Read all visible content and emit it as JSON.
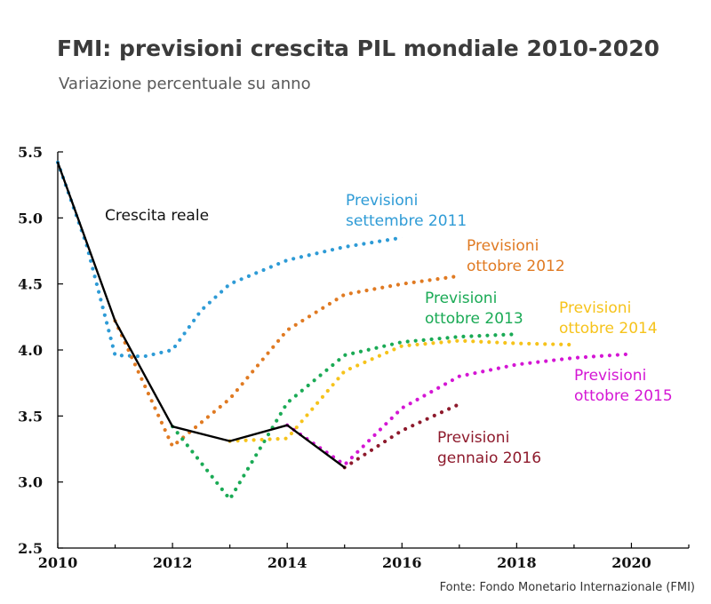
{
  "title": "FMI: previsioni crescita PIL mondiale 2010-2020",
  "subtitle": "Variazione percentuale su anno",
  "source": "Fonte: Fondo Monetario Internazionale (FMI)",
  "chart_data": {
    "type": "line",
    "xlim": [
      2010,
      2021
    ],
    "ylim": [
      2.5,
      5.5
    ],
    "x_ticks": [
      2010,
      2012,
      2014,
      2016,
      2018,
      2020
    ],
    "y_ticks": [
      "2.5",
      "3.0",
      "3.5",
      "4.0",
      "4.5",
      "5.0",
      "5.5"
    ],
    "grid": false,
    "series": [
      {
        "name": "Crescita reale",
        "color": "#000000",
        "style": "solid",
        "label_lines": [
          "Crescita reale"
        ],
        "points": [
          [
            2010,
            5.42
          ],
          [
            2011,
            4.22
          ],
          [
            2012,
            3.42
          ],
          [
            2013,
            3.31
          ],
          [
            2014,
            3.43
          ],
          [
            2015,
            3.11
          ]
        ]
      },
      {
        "name": "Previsioni settembre 2011",
        "color": "#2e9bd6",
        "style": "dotted",
        "label_lines": [
          "Previsioni",
          "settembre 2011"
        ],
        "points": [
          [
            2010,
            5.42
          ],
          [
            2010.5,
            4.8
          ],
          [
            2011,
            3.96
          ],
          [
            2011.5,
            3.95
          ],
          [
            2012,
            4.0
          ],
          [
            2012.5,
            4.3
          ],
          [
            2013,
            4.5
          ],
          [
            2014,
            4.68
          ],
          [
            2015,
            4.78
          ],
          [
            2016,
            4.85
          ]
        ]
      },
      {
        "name": "Previsioni ottobre 2012",
        "color": "#e07a22",
        "style": "dotted",
        "label_lines": [
          "Previsioni",
          "ottobre 2012"
        ],
        "points": [
          [
            2011,
            4.22
          ],
          [
            2012,
            3.27
          ],
          [
            2013,
            3.63
          ],
          [
            2014,
            4.15
          ],
          [
            2015,
            4.42
          ],
          [
            2016,
            4.5
          ],
          [
            2017,
            4.56
          ]
        ]
      },
      {
        "name": "Previsioni ottobre 2013",
        "color": "#1aaa55",
        "style": "dotted",
        "label_lines": [
          "Previsioni",
          "ottobre 2013"
        ],
        "points": [
          [
            2012,
            3.42
          ],
          [
            2013,
            2.87
          ],
          [
            2014,
            3.6
          ],
          [
            2015,
            3.96
          ],
          [
            2016,
            4.06
          ],
          [
            2017,
            4.1
          ],
          [
            2018,
            4.12
          ]
        ]
      },
      {
        "name": "Previsioni ottobre 2014",
        "color": "#f6c31b",
        "style": "dotted",
        "label_lines": [
          "Previsioni",
          "ottobre 2014"
        ],
        "points": [
          [
            2013,
            3.31
          ],
          [
            2014,
            3.33
          ],
          [
            2015,
            3.84
          ],
          [
            2016,
            4.03
          ],
          [
            2017,
            4.07
          ],
          [
            2018,
            4.05
          ],
          [
            2019,
            4.04
          ]
        ]
      },
      {
        "name": "Previsioni ottobre 2015",
        "color": "#d416d4",
        "style": "dotted",
        "label_lines": [
          "Previsioni",
          "ottobre 2015"
        ],
        "points": [
          [
            2014,
            3.43
          ],
          [
            2015,
            3.13
          ],
          [
            2016,
            3.56
          ],
          [
            2017,
            3.8
          ],
          [
            2018,
            3.89
          ],
          [
            2019,
            3.94
          ],
          [
            2020,
            3.97
          ]
        ]
      },
      {
        "name": "Previsioni gennaio 2016",
        "color": "#8e1a2c",
        "style": "dotted",
        "label_lines": [
          "Previsioni",
          "gennaio 2016"
        ],
        "points": [
          [
            2015,
            3.11
          ],
          [
            2016,
            3.39
          ],
          [
            2017,
            3.59
          ]
        ]
      }
    ]
  }
}
